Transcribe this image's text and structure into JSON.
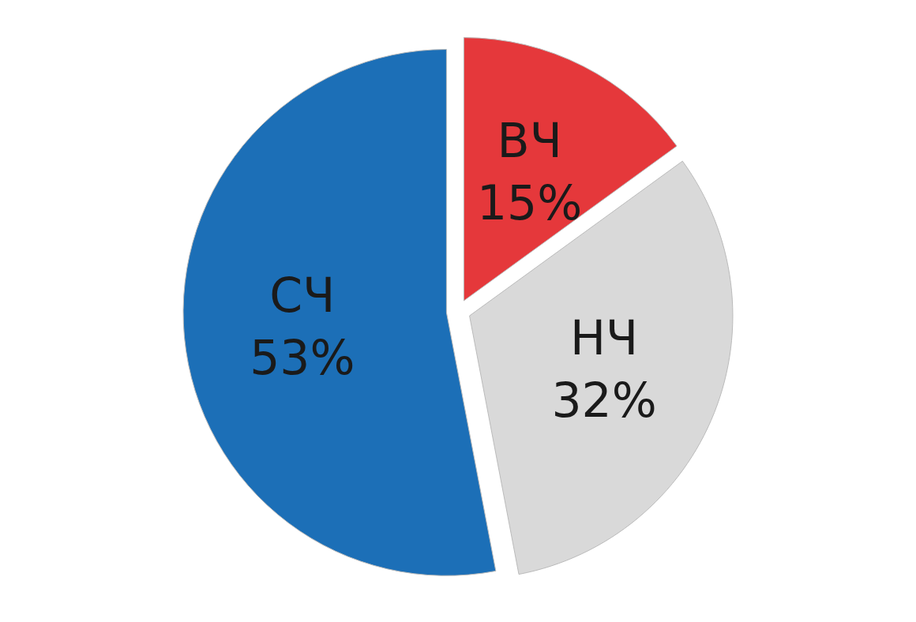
{
  "chart_data": {
    "type": "pie",
    "categories": [
      "ВЧ",
      "НЧ",
      "СЧ"
    ],
    "values": [
      15,
      32,
      53
    ],
    "colors": [
      "#e5383b",
      "#d9d9d9",
      "#1c6fb7"
    ],
    "value_labels": [
      "15%",
      "32%",
      "53%"
    ]
  }
}
